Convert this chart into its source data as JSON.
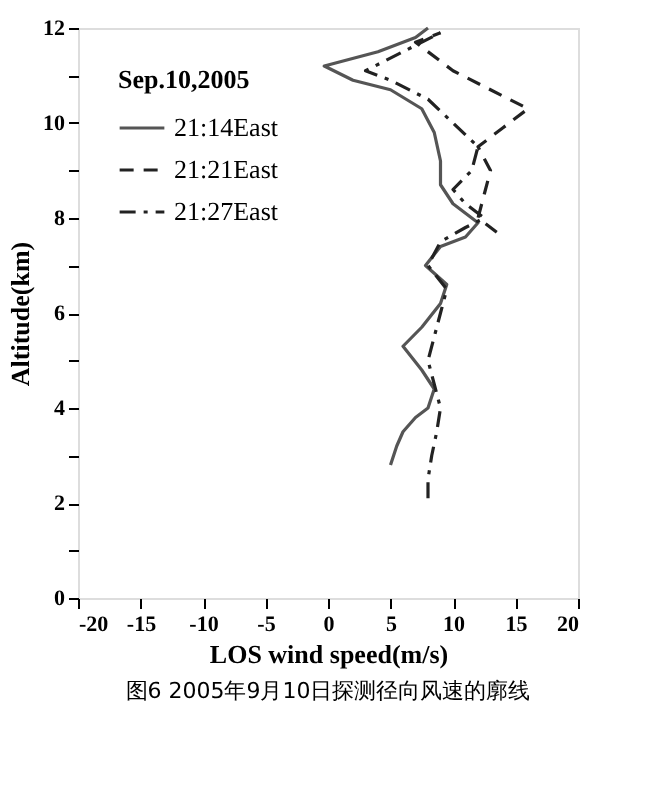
{
  "chart_data": {
    "type": "line",
    "xlabel": "LOS wind speed(m/s)",
    "ylabel": "Altitude(km)",
    "legend_title": "Sep.10,2005",
    "legend": "top left",
    "grid": false,
    "xlim": [
      -20,
      20
    ],
    "ylim": [
      0,
      12
    ],
    "xticks": [
      -20,
      -15,
      -10,
      -5,
      0,
      5,
      10,
      15,
      20
    ],
    "yticks": [
      0,
      {
        "value": 1,
        "label": null
      },
      2,
      {
        "value": 3,
        "label": null
      },
      4,
      {
        "value": 5,
        "label": null
      },
      6,
      {
        "value": 7,
        "label": null
      },
      8,
      {
        "value": 9,
        "label": null
      },
      10,
      {
        "value": 11,
        "label": null
      },
      12
    ],
    "annotations": [
      "图6 2005年9月10日探测径向风速的廓线"
    ],
    "series": [
      {
        "name": "21:14East",
        "color": "#555555",
        "line_style": "solid",
        "x": [
          5,
          5.5,
          6,
          7,
          8,
          8.5,
          7.5,
          6,
          7.5,
          9,
          9.5,
          7.8,
          9,
          11,
          12,
          10,
          9,
          9,
          8.5,
          7.5,
          5,
          2,
          -0.3,
          4,
          7,
          8
        ],
        "values": [
          2.8,
          3.2,
          3.5,
          3.8,
          4.0,
          4.4,
          4.8,
          5.3,
          5.7,
          6.2,
          6.6,
          7.0,
          7.4,
          7.6,
          7.9,
          8.3,
          8.7,
          9.2,
          9.8,
          10.3,
          10.7,
          10.9,
          11.2,
          11.5,
          11.8,
          12
        ]
      },
      {
        "name": "21:21East",
        "color": "#222222",
        "line_style": "dashed",
        "x": [
          13.5,
          12,
          12.5,
          13,
          12,
          14,
          16,
          13,
          10,
          7,
          9
        ],
        "values": [
          7.7,
          8.0,
          8.5,
          9.0,
          9.5,
          9.9,
          10.3,
          10.7,
          11.1,
          11.7,
          11.9
        ]
      },
      {
        "name": "21:27East",
        "color": "#222222",
        "line_style": "dashdot",
        "x": [
          8,
          8,
          8.3,
          8.7,
          9,
          8.5,
          8,
          8.5,
          9,
          9.5,
          8,
          9,
          11,
          12.5,
          11,
          10,
          11.5,
          12,
          10,
          8,
          5,
          3,
          6,
          9
        ],
        "values": [
          2.1,
          2.5,
          3.0,
          3.5,
          4.0,
          4.5,
          5.0,
          5.5,
          6.0,
          6.5,
          7.0,
          7.5,
          7.8,
          8.0,
          8.3,
          8.6,
          9.0,
          9.5,
          10.0,
          10.5,
          10.9,
          11.1,
          11.5,
          11.9
        ]
      }
    ]
  }
}
